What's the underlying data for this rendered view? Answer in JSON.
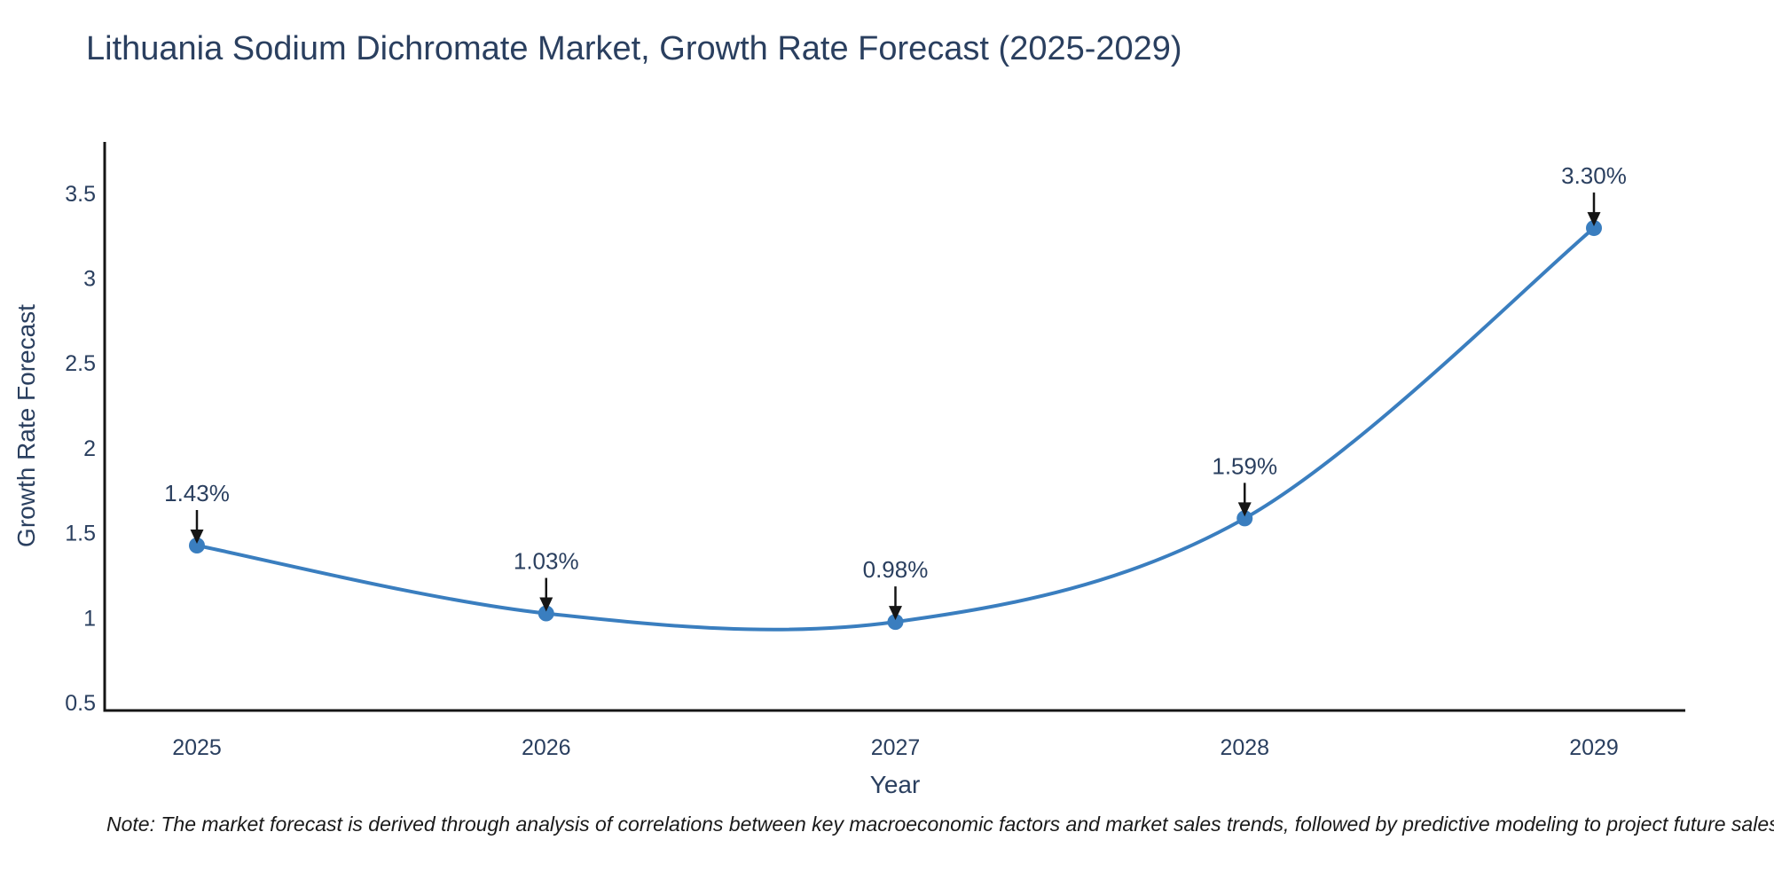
{
  "title": "Lithuania Sodium Dichromate Market, Growth Rate Forecast (2025-2029)",
  "note": "Note: The market forecast is derived through analysis of correlations between key macroeconomic factors and market sales trends, followed by predictive modeling to project future sales",
  "chart_data": {
    "type": "line",
    "line_shape": "spline",
    "title": "Lithuania Sodium Dichromate Market, Growth Rate Forecast (2025-2029)",
    "xlabel": "Year",
    "ylabel": "Growth Rate Forecast",
    "categories": [
      "2025",
      "2026",
      "2027",
      "2028",
      "2029"
    ],
    "values": [
      1.43,
      1.03,
      0.98,
      1.59,
      3.3
    ],
    "point_labels": [
      "1.43%",
      "1.03%",
      "0.98%",
      "1.59%",
      "3.30%"
    ],
    "yticks": [
      0.5,
      1,
      1.5,
      2,
      2.5,
      3,
      3.5
    ],
    "ylim": [
      0.5,
      3.6
    ],
    "grid": false,
    "legend": false,
    "annotations_arrow": true,
    "colors": {
      "line": "#3a7ebf",
      "marker": "#3a7ebf",
      "arrow": "#151515",
      "axis": "#151515",
      "text": "#2a3f5f"
    }
  }
}
